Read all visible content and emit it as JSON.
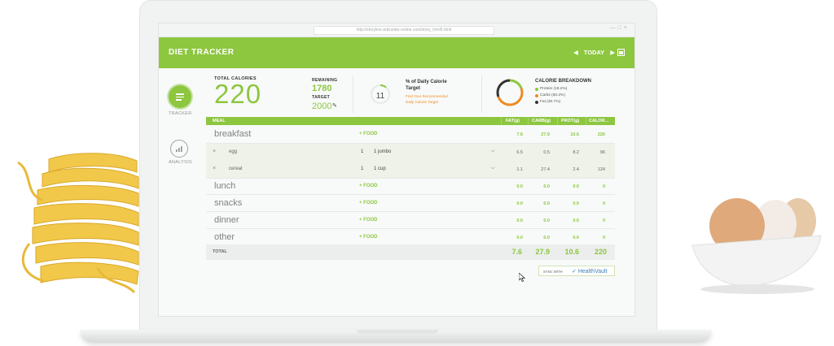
{
  "browser": {
    "url": "http://storyline.articulate-online.com/story_html5.html"
  },
  "app": {
    "title": "DIET TRACKER",
    "date_label": "TODAY"
  },
  "sidebar": {
    "tracker_label": "TRACKER",
    "analysis_label": "ANALYSIS"
  },
  "summary": {
    "total_calories_label": "TOTAL CALORIES",
    "total_calories": "220",
    "remaining_label": "REMAINING",
    "remaining": "1780",
    "target_label": "TARGET",
    "target": "2000",
    "daily_pct": "11",
    "daily_pct_fraction": 0.11,
    "daily_title": "% of Daily Calorie Target",
    "daily_link1": "Find Your Recommended",
    "daily_link2": "Daily Calorie Target"
  },
  "breakdown": {
    "title": "CALORIE BREAKDOWN",
    "items": [
      {
        "label": "Protein (19.2%)",
        "color": "#8dc63f",
        "fraction": 0.192
      },
      {
        "label": "Carbs (50.2%)",
        "color": "#f08a24",
        "fraction": 0.502
      },
      {
        "label": "Fat (30.7%)",
        "color": "#333333",
        "fraction": 0.307
      }
    ]
  },
  "table": {
    "headers": {
      "meal": "MEAL",
      "fat": "FAT(g)",
      "carb": "CARB(g)",
      "prot": "PROT(g)",
      "cal": "CALOR..."
    },
    "add_food_label": "+ FOOD",
    "meals": [
      {
        "name": "breakfast",
        "fat": "7.6",
        "carb": "27.9",
        "prot": "10.6",
        "cal": "220"
      },
      {
        "name": "lunch",
        "fat": "0.0",
        "carb": "0.0",
        "prot": "0.0",
        "cal": "0"
      },
      {
        "name": "snacks",
        "fat": "0.0",
        "carb": "0.0",
        "prot": "0.0",
        "cal": "0"
      },
      {
        "name": "dinner",
        "fat": "0.0",
        "carb": "0.0",
        "prot": "0.0",
        "cal": "0"
      },
      {
        "name": "other",
        "fat": "0.0",
        "carb": "0.0",
        "prot": "0.0",
        "cal": "0"
      }
    ],
    "foods": [
      {
        "name": "egg",
        "qty": "1",
        "unit": "1 jumbo",
        "fat": "6.5",
        "carb": "0.5",
        "prot": "8.2",
        "cal": "96"
      },
      {
        "name": "cereal",
        "qty": "1",
        "unit": "1 cup",
        "fat": "1.1",
        "carb": "27.4",
        "prot": "2.4",
        "cal": "124"
      }
    ],
    "total": {
      "label": "TOTAL",
      "fat": "7.6",
      "carb": "27.9",
      "prot": "10.6",
      "cal": "220"
    }
  },
  "sync": {
    "label": "SYNC WITH",
    "brand": "HealthVault"
  }
}
